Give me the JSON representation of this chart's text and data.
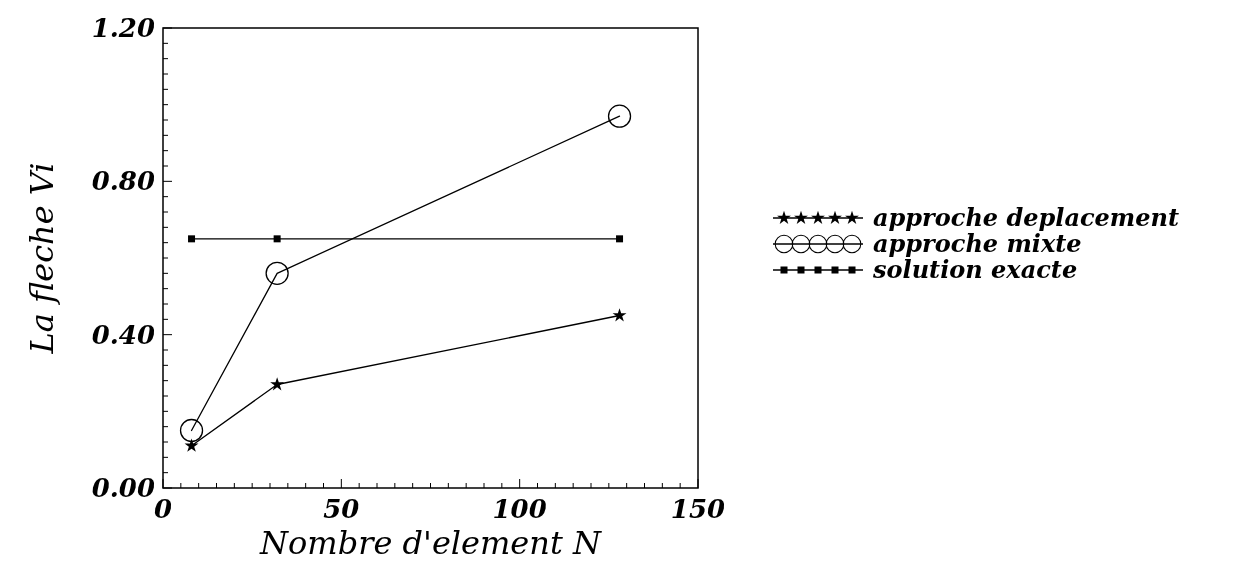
{
  "chart_data": {
    "type": "line",
    "xlabel": "Nombre d'element N",
    "ylabel": "La fleche Vi",
    "x": [
      8,
      32,
      128
    ],
    "xlim": [
      0,
      150
    ],
    "ylim": [
      0,
      1.2
    ],
    "xticks": [
      0,
      {
        "value": 5,
        "label": null
      },
      {
        "value": 10,
        "label": null
      },
      {
        "value": 15,
        "label": null
      },
      {
        "value": 20,
        "label": null
      },
      {
        "value": 25,
        "label": null
      },
      {
        "value": 30,
        "label": null
      },
      {
        "value": 35,
        "label": null
      },
      {
        "value": 40,
        "label": null
      },
      {
        "value": 45,
        "label": null
      },
      50,
      {
        "value": 55,
        "label": null
      },
      {
        "value": 60,
        "label": null
      },
      {
        "value": 65,
        "label": null
      },
      {
        "value": 70,
        "label": null
      },
      {
        "value": 75,
        "label": null
      },
      {
        "value": 80,
        "label": null
      },
      {
        "value": 85,
        "label": null
      },
      {
        "value": 90,
        "label": null
      },
      {
        "value": 95,
        "label": null
      },
      100,
      {
        "value": 105,
        "label": null
      },
      {
        "value": 110,
        "label": null
      },
      {
        "value": 115,
        "label": null
      },
      {
        "value": 120,
        "label": null
      },
      {
        "value": 125,
        "label": null
      },
      {
        "value": 130,
        "label": null
      },
      {
        "value": 135,
        "label": null
      },
      {
        "value": 140,
        "label": null
      },
      {
        "value": 145,
        "label": null
      },
      150
    ],
    "yticks": [
      {
        "value": 0,
        "label": "0.00"
      },
      {
        "value": 0.04,
        "label": null
      },
      {
        "value": 0.08,
        "label": null
      },
      {
        "value": 0.12,
        "label": null
      },
      {
        "value": 0.16,
        "label": null
      },
      {
        "value": 0.2,
        "label": null
      },
      {
        "value": 0.24,
        "label": null
      },
      {
        "value": 0.28,
        "label": null
      },
      {
        "value": 0.32,
        "label": null
      },
      {
        "value": 0.36,
        "label": null
      },
      {
        "value": 0.4,
        "label": "0.40"
      },
      {
        "value": 0.44,
        "label": null
      },
      {
        "value": 0.48,
        "label": null
      },
      {
        "value": 0.52,
        "label": null
      },
      {
        "value": 0.56,
        "label": null
      },
      {
        "value": 0.6,
        "label": null
      },
      {
        "value": 0.64,
        "label": null
      },
      {
        "value": 0.68,
        "label": null
      },
      {
        "value": 0.72,
        "label": null
      },
      {
        "value": 0.76,
        "label": null
      },
      {
        "value": 0.8,
        "label": "0.80"
      },
      {
        "value": 0.84,
        "label": null
      },
      {
        "value": 0.88,
        "label": null
      },
      {
        "value": 0.92,
        "label": null
      },
      {
        "value": 0.96,
        "label": null
      },
      {
        "value": 1,
        "label": null
      },
      {
        "value": 1.04,
        "label": null
      },
      {
        "value": 1.08,
        "label": null
      },
      {
        "value": 1.12,
        "label": null
      },
      {
        "value": 1.16,
        "label": null
      },
      {
        "value": 1.2,
        "label": "1.20"
      }
    ],
    "legend": "right",
    "grid": false,
    "series": [
      {
        "name": "approche deplacement",
        "color": "#000000",
        "marker": "star",
        "values": [
          0.11,
          0.27,
          0.45
        ]
      },
      {
        "name": "approche mixte",
        "color": "#000000",
        "marker": "circle",
        "values": [
          0.15,
          0.56,
          0.97
        ]
      },
      {
        "name": "solution exacte",
        "color": "#000000",
        "marker": "square",
        "values": [
          0.65,
          0.65,
          0.65
        ]
      }
    ]
  }
}
